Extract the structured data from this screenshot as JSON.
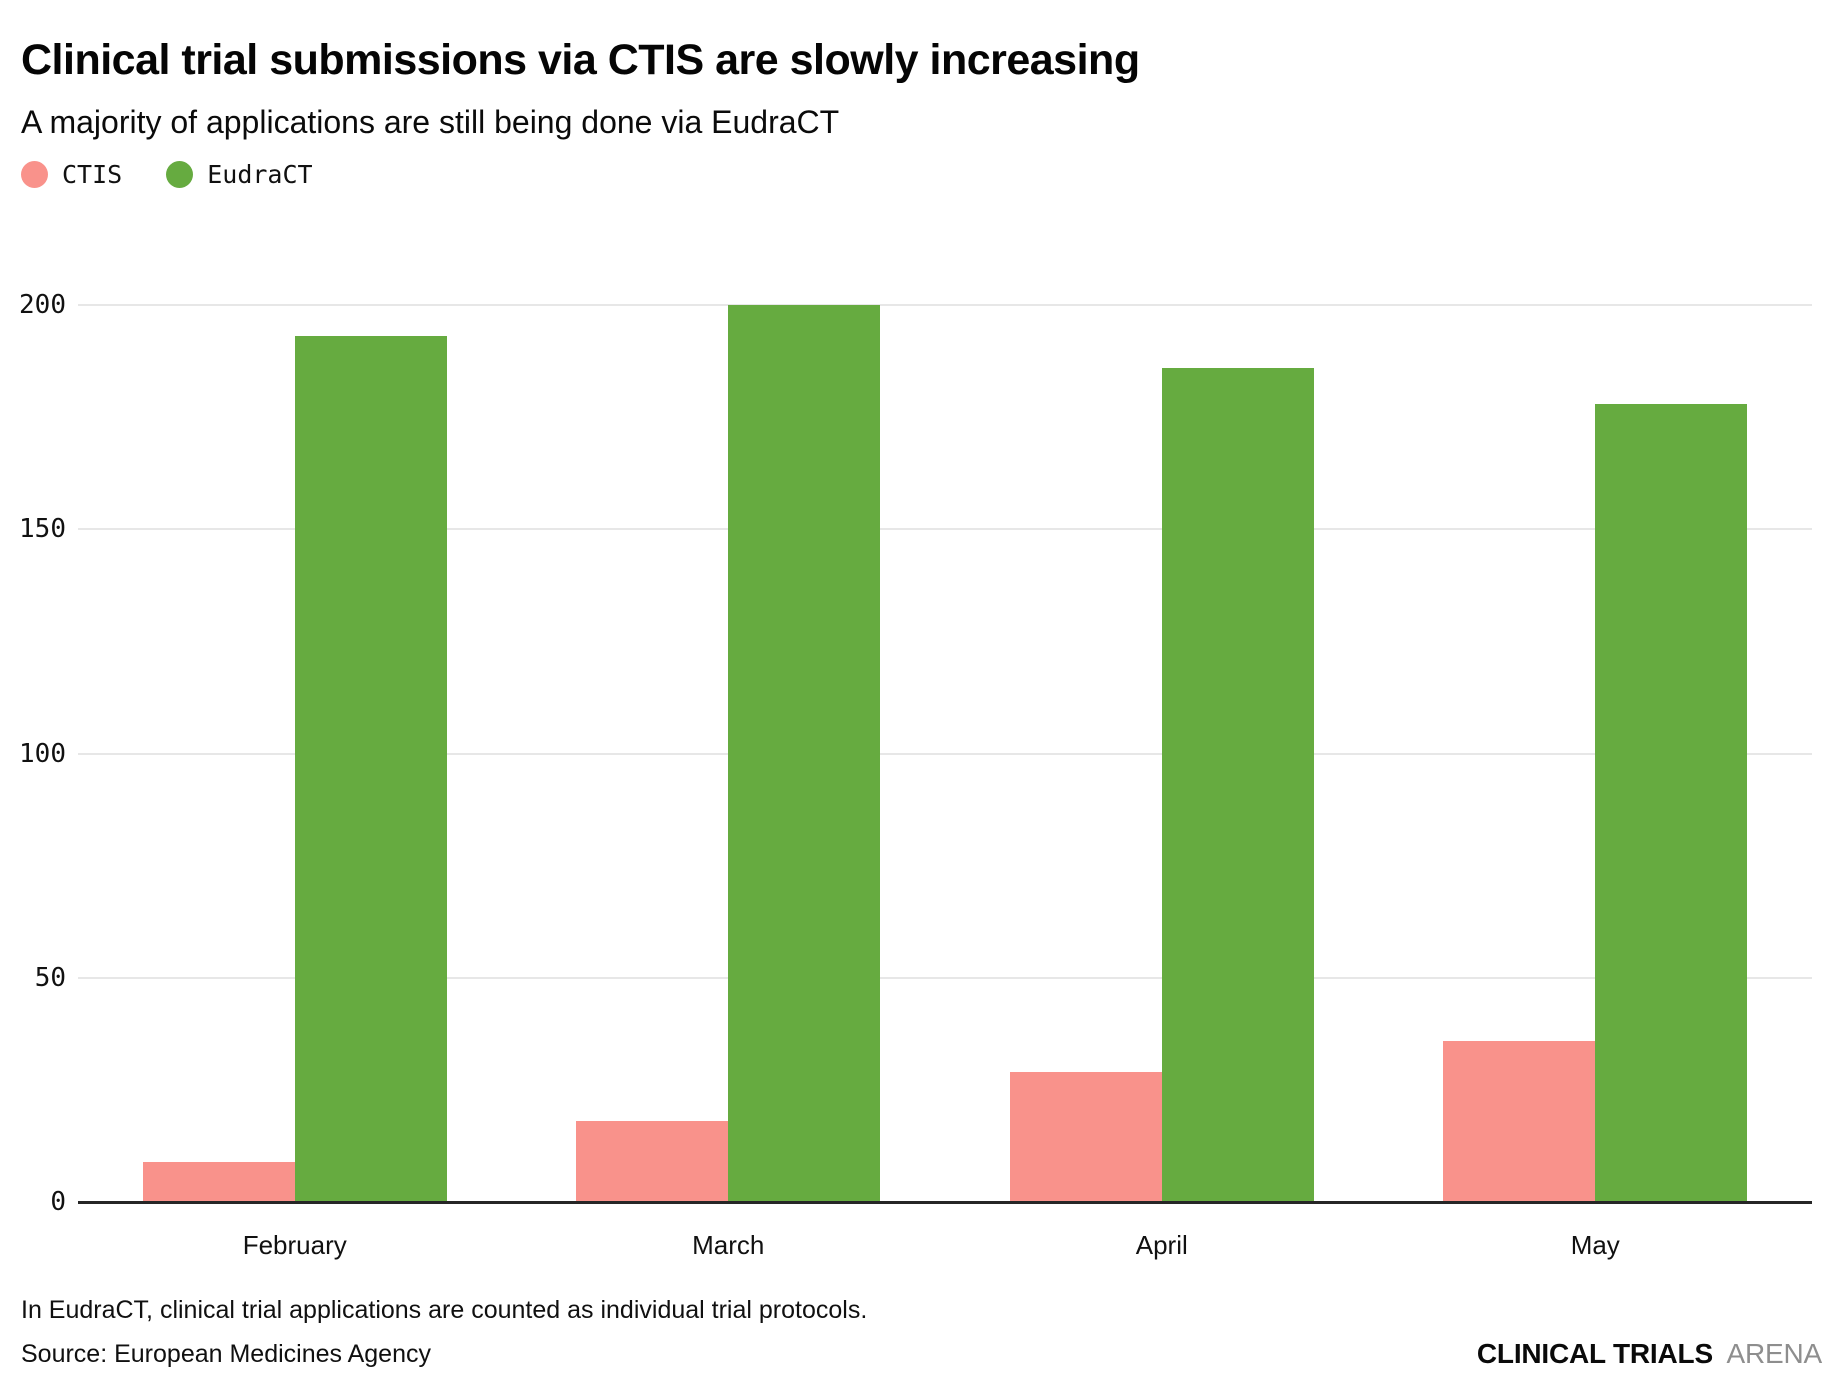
{
  "header": {
    "title": "Clinical trial submissions via CTIS are slowly increasing",
    "subtitle": "A majority of applications are still being done via EudraCT"
  },
  "chart_data": {
    "type": "bar",
    "categories": [
      "February",
      "March",
      "April",
      "May"
    ],
    "series": [
      {
        "name": "CTIS",
        "color": "#F9928B",
        "values": [
          9,
          18,
          29,
          36
        ]
      },
      {
        "name": "EudraCT",
        "color": "#66AB40",
        "values": [
          193,
          200,
          186,
          178
        ]
      }
    ],
    "title": "Clinical trial submissions via CTIS are slowly increasing",
    "subtitle": "A majority of applications are still being done via EudraCT",
    "xlabel": "",
    "ylabel": "",
    "ylim": [
      0,
      200
    ],
    "yticks": [
      0,
      50,
      100,
      150,
      200
    ],
    "grid": "horizontal",
    "legend_position": "top-left",
    "colors": {
      "grid": "#e7e7e7",
      "axis": "#262626",
      "text": "#111111"
    }
  },
  "footer": {
    "note": "In EudraCT, clinical trial applications are counted as individual trial protocols.",
    "source": "Source: European Medicines Agency",
    "brand_bold": "CLINICAL TRIALS",
    "brand_light": "ARENA"
  }
}
